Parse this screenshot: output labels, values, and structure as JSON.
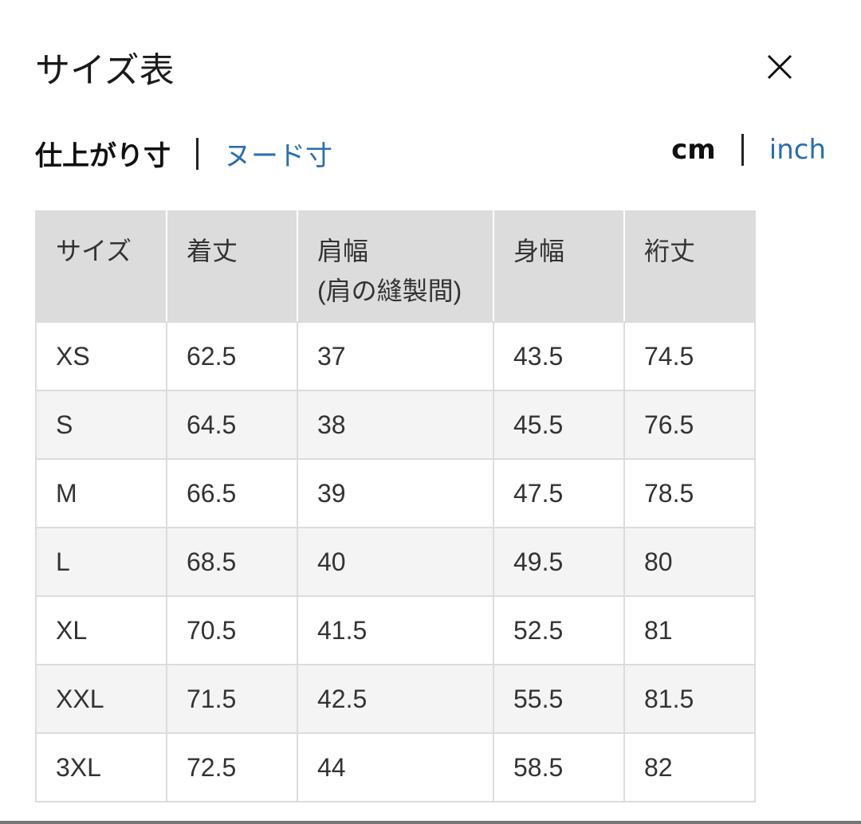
{
  "title": "サイズ表",
  "close_icon": "close-icon",
  "measure_tabs": [
    {
      "label": "仕上がり寸",
      "active": true
    },
    {
      "label": "ヌード寸",
      "active": false
    }
  ],
  "unit_tabs": [
    {
      "label": "cm",
      "active": true
    },
    {
      "label": "inch",
      "active": false
    }
  ],
  "colors": {
    "link": "#2a6db0",
    "header_bg": "#dcdcdc",
    "alt_row": "#f4f4f4"
  },
  "table": {
    "headers": [
      "サイズ",
      "着丈",
      "肩幅",
      "身幅",
      "裄丈"
    ],
    "header_sub": {
      "2": "(肩の縫製間)"
    },
    "rows": [
      [
        "XS",
        "62.5",
        "37",
        "43.5",
        "74.5"
      ],
      [
        "S",
        "64.5",
        "38",
        "45.5",
        "76.5"
      ],
      [
        "M",
        "66.5",
        "39",
        "47.5",
        "78.5"
      ],
      [
        "L",
        "68.5",
        "40",
        "49.5",
        "80"
      ],
      [
        "XL",
        "70.5",
        "41.5",
        "52.5",
        "81"
      ],
      [
        "XXL",
        "71.5",
        "42.5",
        "55.5",
        "81.5"
      ],
      [
        "3XL",
        "72.5",
        "44",
        "58.5",
        "82"
      ]
    ]
  }
}
